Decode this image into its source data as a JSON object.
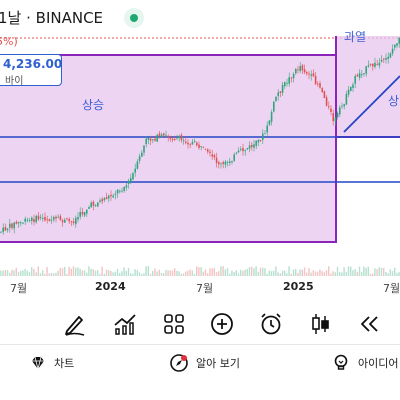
{
  "header": {
    "title": "1날 · BINANCE",
    "change_pct": "5%)",
    "live_color": "#1fa971"
  },
  "price_tag": {
    "value": "4,236.00",
    "sub": "바이"
  },
  "annotations": {
    "rise_label_left": "상승",
    "overheat_label": "과열",
    "rise_label_right": "상"
  },
  "x_axis": {
    "labels": [
      {
        "text": "7월",
        "bold": false
      },
      {
        "text": "2024",
        "bold": true
      },
      {
        "text": "7월",
        "bold": false
      },
      {
        "text": "2025",
        "bold": true
      },
      {
        "text": "7월",
        "bold": false
      }
    ]
  },
  "toolbar": {
    "tools": [
      "pen-icon",
      "indicators-icon",
      "grid-icon",
      "add-icon",
      "alarm-clock-icon",
      "candlestick-icon",
      "rewind-icon"
    ]
  },
  "bottom_nav": {
    "items": [
      {
        "label": "차트",
        "icon": "diamond-icon"
      },
      {
        "label": "알아 보기",
        "icon": "explore-icon"
      },
      {
        "label": "아이디어",
        "icon": "bulb-icon"
      }
    ]
  },
  "colors": {
    "zone_fill": "#e7c6ee",
    "zone_border": "#8b24b8",
    "level_line": "#2446c8",
    "up": "#2fa579",
    "down": "#e05252",
    "accent": "#2f5fd0"
  }
}
